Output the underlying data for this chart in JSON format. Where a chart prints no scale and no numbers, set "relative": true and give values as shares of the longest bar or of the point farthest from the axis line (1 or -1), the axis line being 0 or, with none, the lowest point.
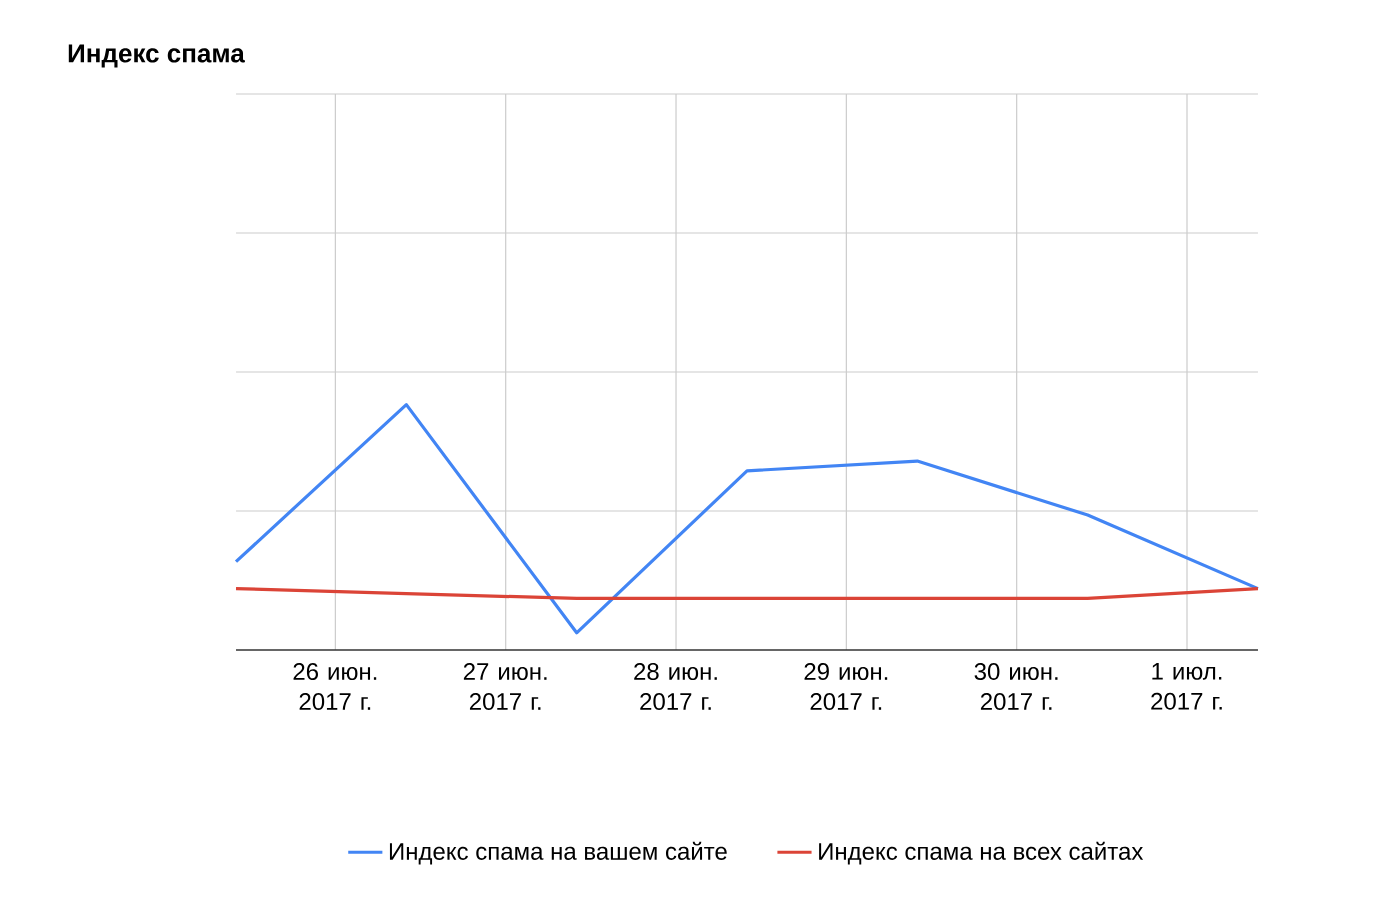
{
  "chart_data": {
    "type": "line",
    "title": "Индекс спама",
    "relative": true,
    "grid": true,
    "legend": "bottom",
    "x": [
      "2017-06-25T10:00",
      "2017-06-26T10:00",
      "2017-06-27T10:00",
      "2017-06-28T10:00",
      "2017-06-29T10:00",
      "2017-06-30T10:00",
      "2017-07-01T10:00"
    ],
    "xlim": [
      "2017-06-25T10:00",
      "2017-07-01T10:00"
    ],
    "xticks": [
      {
        "value": "2017-06-26",
        "label": "26 июн. 2017 г."
      },
      {
        "value": "2017-06-27",
        "label": "27 июн. 2017 г."
      },
      {
        "value": "2017-06-28",
        "label": "28 июн. 2017 г."
      },
      {
        "value": "2017-06-29",
        "label": "29 июн. 2017 г."
      },
      {
        "value": "2017-06-30",
        "label": "30 июн. 2017 г."
      },
      {
        "value": "2017-07-01",
        "label": "1 июл. 2017 г."
      }
    ],
    "series": [
      {
        "name": "Индекс спама на вашем сайте",
        "color": "#4285f4",
        "values": [
          0.36,
          1,
          0.07,
          0.73,
          0.77,
          0.55,
          0.25
        ]
      },
      {
        "name": "Индекс спама на всех сайтах",
        "color": "#db4437",
        "values": [
          0.25,
          0.23,
          0.21,
          0.21,
          0.21,
          0.21,
          0.25
        ]
      }
    ]
  }
}
